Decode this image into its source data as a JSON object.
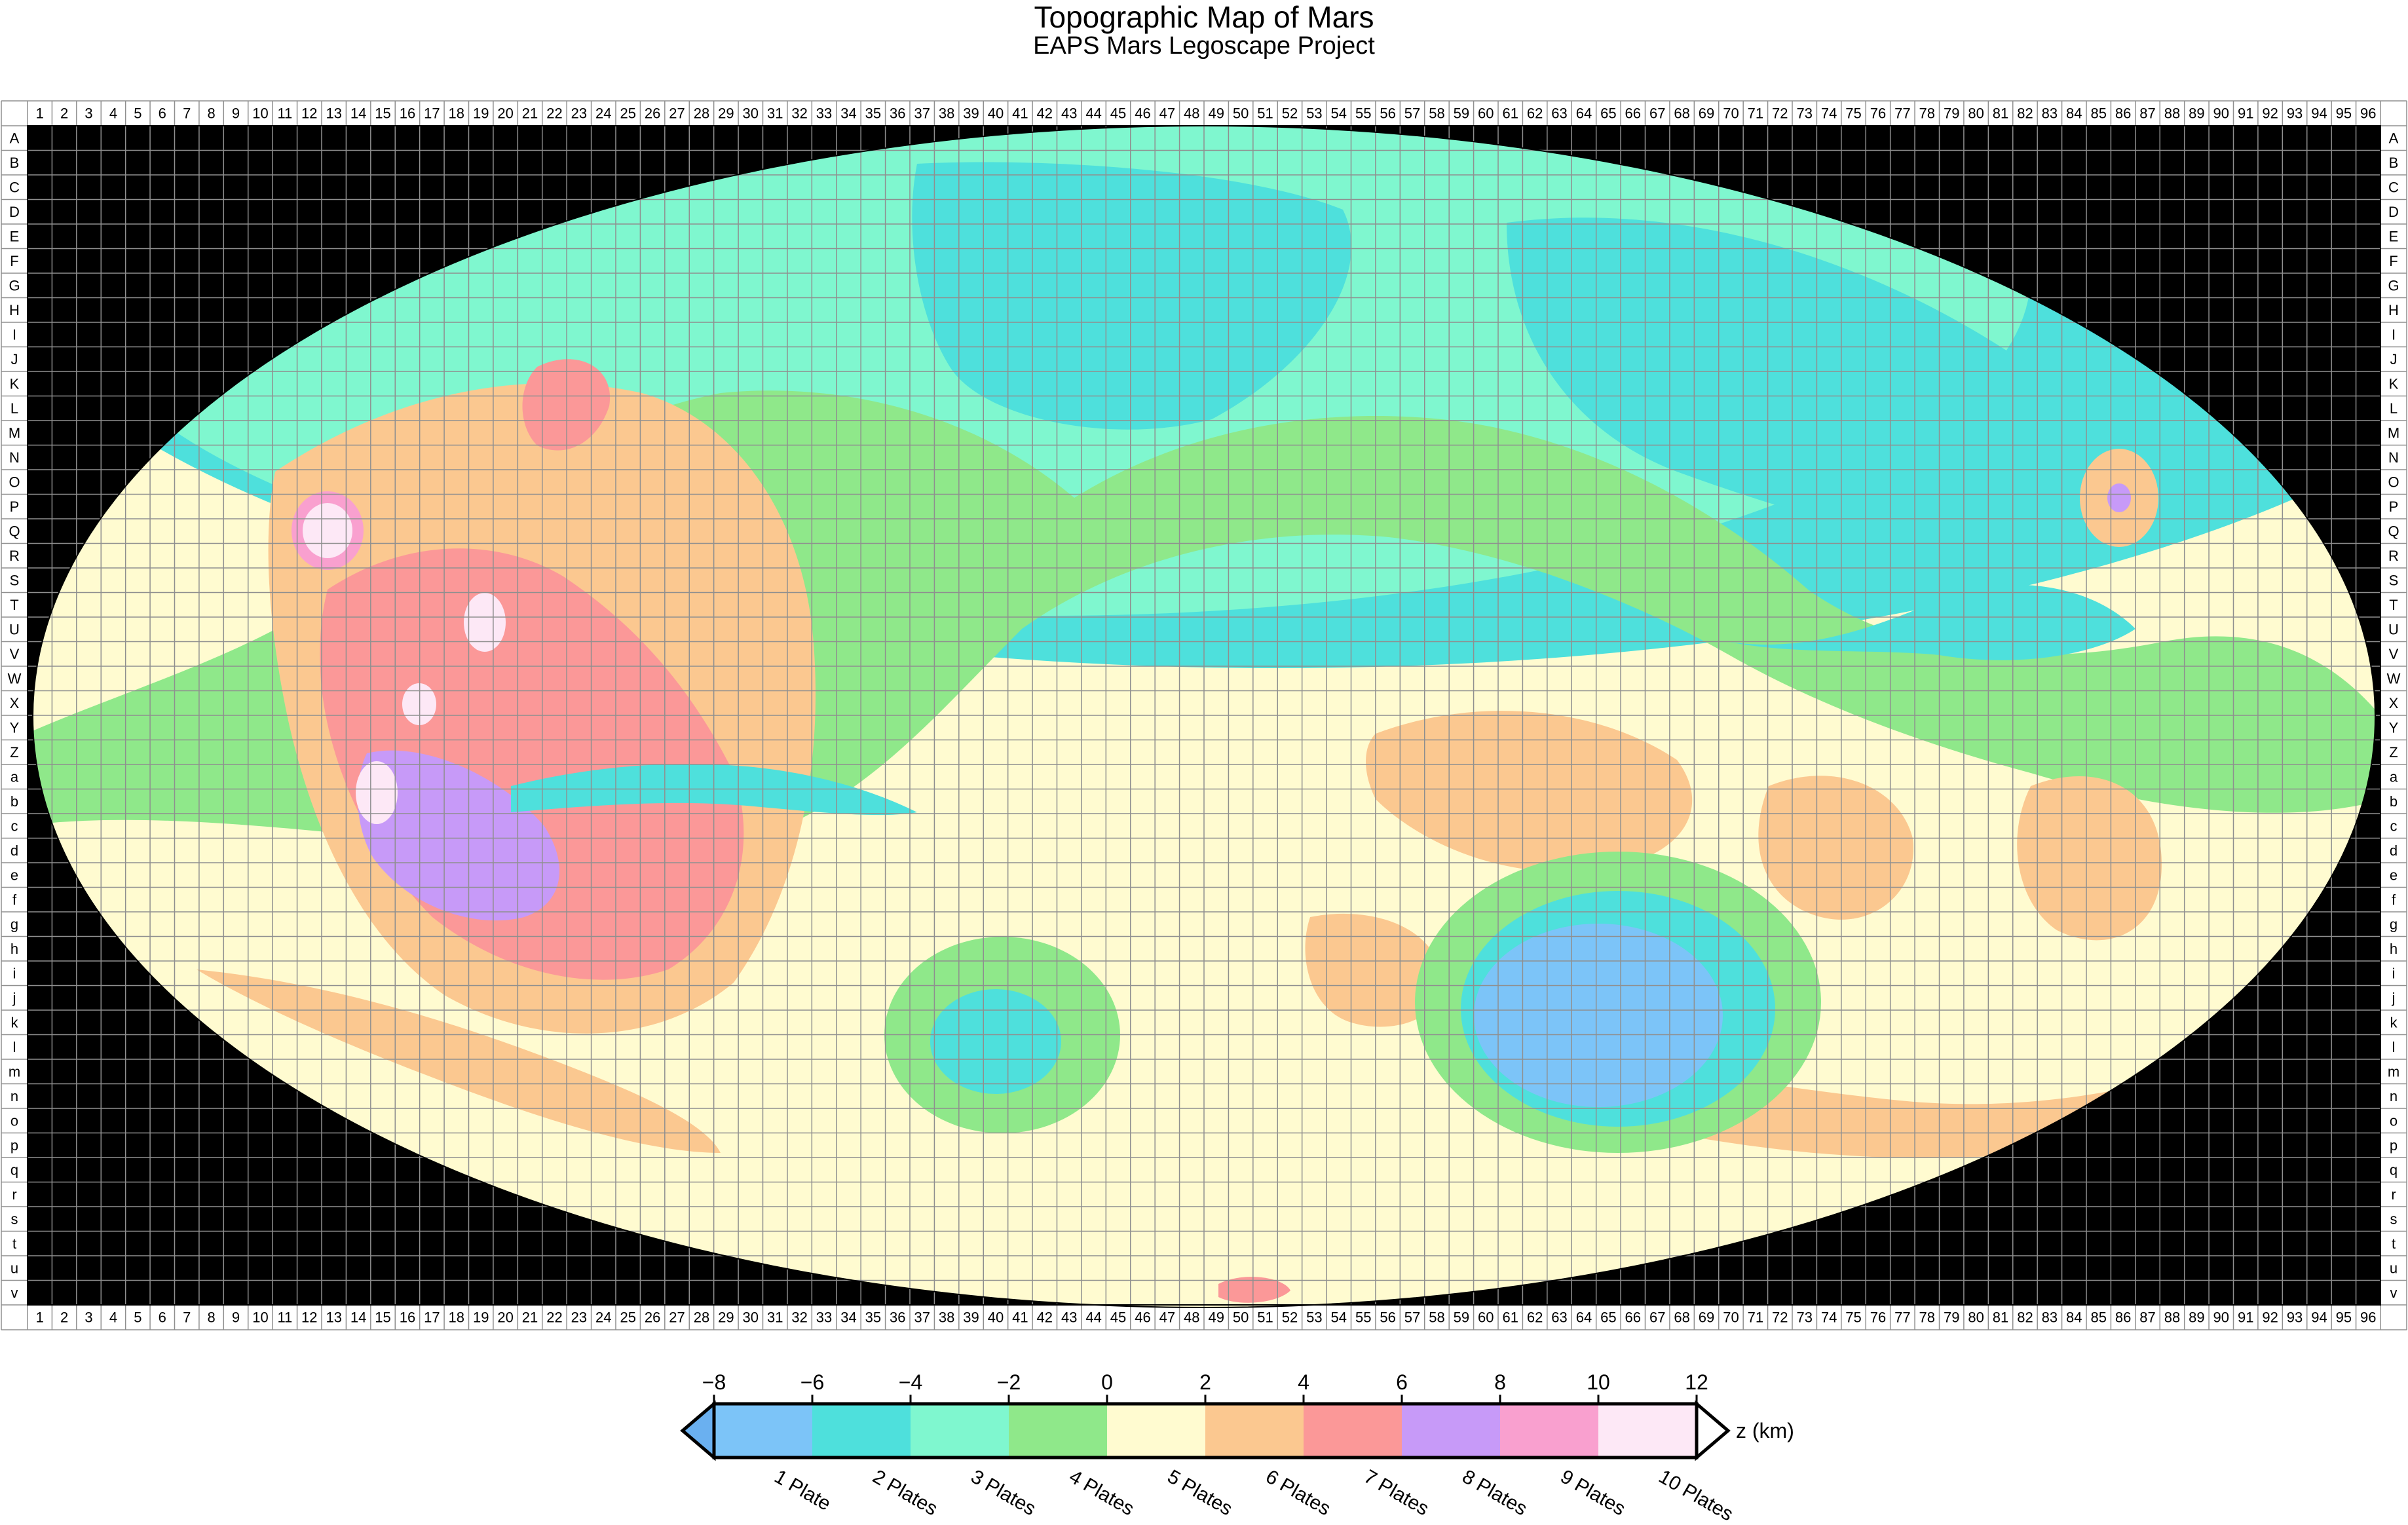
{
  "title": "Topographic Map of Mars",
  "subtitle": "EAPS Mars Legoscape Project",
  "grid": {
    "columns": [
      "1",
      "2",
      "3",
      "4",
      "5",
      "6",
      "7",
      "8",
      "9",
      "10",
      "11",
      "12",
      "13",
      "14",
      "15",
      "16",
      "17",
      "18",
      "19",
      "20",
      "21",
      "22",
      "23",
      "24",
      "25",
      "26",
      "27",
      "28",
      "29",
      "30",
      "31",
      "32",
      "33",
      "34",
      "35",
      "36",
      "37",
      "38",
      "39",
      "40",
      "41",
      "42",
      "43",
      "44",
      "45",
      "46",
      "47",
      "48",
      "49",
      "50",
      "51",
      "52",
      "53",
      "54",
      "55",
      "56",
      "57",
      "58",
      "59",
      "60",
      "61",
      "62",
      "63",
      "64",
      "65",
      "66",
      "67",
      "68",
      "69",
      "70",
      "71",
      "72",
      "73",
      "74",
      "75",
      "76",
      "77",
      "78",
      "79",
      "80",
      "81",
      "82",
      "83",
      "84",
      "85",
      "86",
      "87",
      "88",
      "89",
      "90",
      "91",
      "92",
      "93",
      "94",
      "95",
      "96"
    ],
    "rows": [
      "A",
      "B",
      "C",
      "D",
      "E",
      "F",
      "G",
      "H",
      "I",
      "J",
      "K",
      "L",
      "M",
      "N",
      "O",
      "P",
      "Q",
      "R",
      "S",
      "T",
      "U",
      "V",
      "W",
      "X",
      "Y",
      "Z",
      "a",
      "b",
      "c",
      "d",
      "e",
      "f",
      "g",
      "h",
      "i",
      "j",
      "k",
      "l",
      "m",
      "n",
      "o",
      "p",
      "q",
      "r",
      "s",
      "t",
      "u",
      "v"
    ]
  },
  "colorbar": {
    "unit_label": "z (km)",
    "ticks": [
      "−8",
      "−6",
      "−4",
      "−2",
      "0",
      "2",
      "4",
      "6",
      "8",
      "10",
      "12"
    ],
    "extend_min_color": "#6ab0f0",
    "bins": [
      {
        "label": "1 Plate",
        "color": "#7cc4f8"
      },
      {
        "label": "2 Plates",
        "color": "#4ee0dc"
      },
      {
        "label": "3 Plates",
        "color": "#7ff7cf"
      },
      {
        "label": "4 Plates",
        "color": "#8fe88a"
      },
      {
        "label": "5 Plates",
        "color": "#fffbd0"
      },
      {
        "label": "6 Plates",
        "color": "#fbc890"
      },
      {
        "label": "7 Plates",
        "color": "#fb9898"
      },
      {
        "label": "8 Plates",
        "color": "#c79af8"
      },
      {
        "label": "9 Plates",
        "color": "#f9a0cf"
      },
      {
        "label": "10 Plates",
        "color": "#fde8f6"
      }
    ]
  },
  "colors": {
    "background": "#000000",
    "grid_line": "#8f8f8f",
    "frame": "#000000"
  }
}
